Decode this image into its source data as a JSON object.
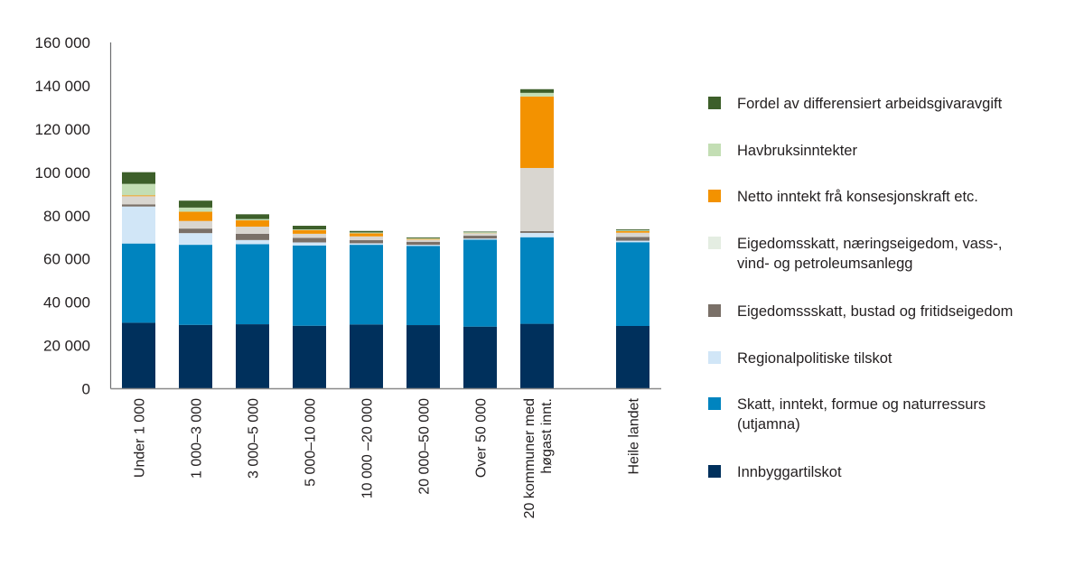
{
  "chart_data": {
    "type": "bar",
    "stacked": true,
    "title": "",
    "xlabel": "",
    "ylabel": "",
    "ylim": [
      0,
      160000
    ],
    "yticks": [
      "0",
      "20 000",
      "40 000",
      "60 000",
      "80 000",
      "100 000",
      "120 000",
      "140 000",
      "160 000"
    ],
    "ytick_values": [
      0,
      20000,
      40000,
      60000,
      80000,
      100000,
      120000,
      140000,
      160000
    ],
    "grid": false,
    "legend_position": "right",
    "categories": [
      [
        "Under 1 000"
      ],
      [
        "1 000–3 000"
      ],
      [
        "3 000–5 000"
      ],
      [
        "5 000–10 000"
      ],
      [
        "10 000 –20 000"
      ],
      [
        "20 000–50 000"
      ],
      [
        "Over 50 000"
      ],
      [
        "20 kommuner med",
        "høgast innt."
      ],
      [
        "Heile landet"
      ]
    ],
    "category_gap_after": [
      7
    ],
    "series": [
      {
        "name": "Innbyggartilskot",
        "color": "#00305c",
        "legend_color": "#00305c",
        "values": [
          30500,
          29500,
          29800,
          29100,
          29700,
          29400,
          28700,
          30000,
          29000
        ]
      },
      {
        "name": "Skatt, inntekt, formue og naturressurs\n(utjamna)",
        "color": "#0084bf",
        "legend_color": "#0084bf",
        "values": [
          36600,
          37000,
          37000,
          37100,
          36800,
          36600,
          40200,
          40000,
          38700
        ]
      },
      {
        "name": "Regionalpolitiske tilskot",
        "color": "#d1e6f7",
        "legend_color": "#d1e6f7",
        "values": [
          17100,
          5400,
          1900,
          1400,
          700,
          500,
          500,
          2000,
          700
        ]
      },
      {
        "name": "Eigedomssskatt, bustad og fritidseigedom",
        "color": "#7a7068",
        "legend_color": "#7a7068",
        "values": [
          1000,
          2100,
          2900,
          2100,
          1500,
          1400,
          1300,
          800,
          1700
        ]
      },
      {
        "name": "Eigedomsskatt, næringseigedom, vass-,\nvind- og petroleumsanlegg",
        "color": "#d9d6d0",
        "legend_color": "#e4ede2",
        "values": [
          3750,
          3500,
          3300,
          1900,
          1700,
          1000,
          1100,
          29200,
          2000
        ]
      },
      {
        "name": "Netto inntekt frå konsesjonskraft etc.",
        "color": "#f39200",
        "legend_color": "#f39200",
        "values": [
          400,
          4300,
          2900,
          1700,
          1400,
          300,
          100,
          33000,
          700
        ]
      },
      {
        "name": "Havbruksinntekter",
        "color": "#c3deb4",
        "legend_color": "#c3deb4",
        "values": [
          5300,
          1900,
          600,
          300,
          400,
          300,
          400,
          1700,
          400
        ]
      },
      {
        "name": "Fordel av differensiert arbeidsgivaravgift",
        "color": "#3d5f2a",
        "legend_color": "#3d5f2a",
        "values": [
          5400,
          3200,
          2200,
          1700,
          700,
          400,
          300,
          1700,
          400
        ]
      }
    ]
  }
}
